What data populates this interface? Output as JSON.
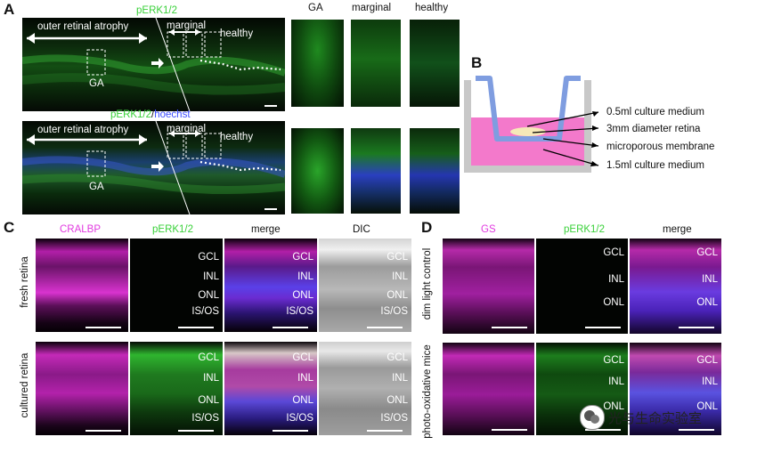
{
  "panel_letters": {
    "a": "A",
    "b": "B",
    "c": "C",
    "d": "D"
  },
  "panelA": {
    "stain_top": "pERK1/2",
    "stain_bottom_1": "pERK1/2",
    "stain_bottom_sep": "/",
    "stain_bottom_2": "hoechst",
    "atrophy_label": "outer retinal atrophy",
    "marginal_label": "marginal",
    "healthy_label": "healthy",
    "ga_label": "GA",
    "col_headers": [
      "GA",
      "marginal",
      "healthy"
    ]
  },
  "panelB": {
    "labels": [
      "0.5ml culture medium",
      "3mm diameter retina",
      "microporous membrane",
      "1.5ml culture medium"
    ]
  },
  "panelC": {
    "col_headers": [
      "CRALBP",
      "pERK1/2",
      "merge",
      "DIC"
    ],
    "row_labels": [
      "fresh retina",
      "cultured retina"
    ],
    "layers": [
      "GCL",
      "INL",
      "ONL",
      "IS/OS"
    ]
  },
  "panelD": {
    "col_headers": [
      "GS",
      "pERK1/2",
      "merge"
    ],
    "row_labels": [
      "dim light control",
      "photo-oxidative mice"
    ],
    "layers": [
      "GCL",
      "INL",
      "ONL"
    ]
  },
  "watermark": "光与生命实验室",
  "colors": {
    "green": "#3ad13a",
    "magenta": "#e23be0",
    "blue": "#3b4cff",
    "pink_medium": "#f272c8",
    "cup_blue": "#7f9de0"
  }
}
